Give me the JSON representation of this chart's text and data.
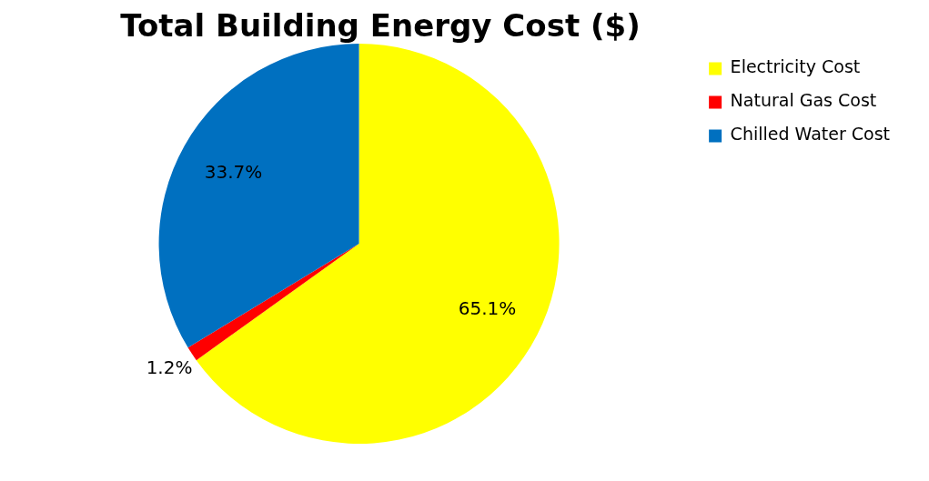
{
  "chart_data": {
    "type": "pie",
    "title": "Total Building Energy Cost ($)",
    "categories": [
      "Electricity Cost",
      "Natural Gas Cost",
      "Chilled Water Cost"
    ],
    "values": [
      65.1,
      1.2,
      33.7
    ],
    "colors": [
      "#ffff00",
      "#ff0000",
      "#0070c0"
    ],
    "value_labels": [
      "65.1%",
      "1.2%",
      "33.7%"
    ],
    "legend": "top right"
  }
}
